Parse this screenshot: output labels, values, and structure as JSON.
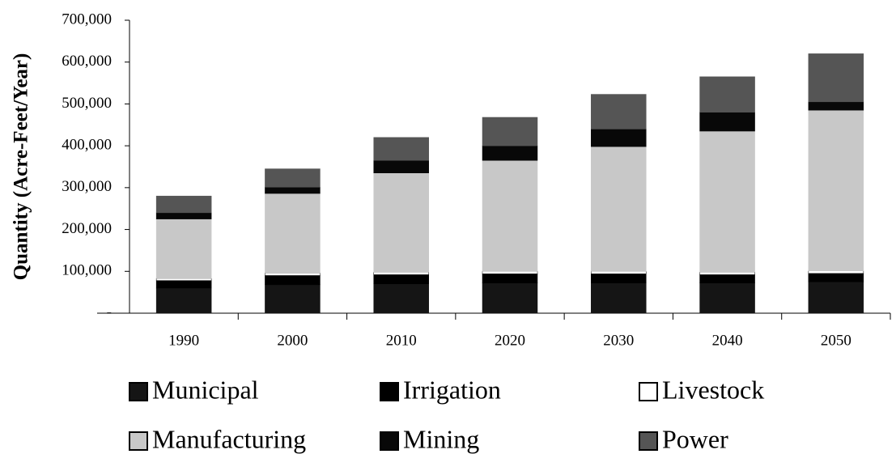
{
  "chart_data": {
    "type": "stacked-bar",
    "y_label": "Quantity (Acre-Feet/Year)",
    "categories": [
      "1990",
      "2000",
      "2010",
      "2020",
      "2030",
      "2040",
      "2050"
    ],
    "series": [
      {
        "name": "Municipal",
        "color": "#151515",
        "values": [
          60000,
          68000,
          70000,
          72000,
          72000,
          72000,
          75000
        ]
      },
      {
        "name": "Irrigation",
        "color": "#000000",
        "values": [
          18000,
          22000,
          22000,
          22000,
          22000,
          20000,
          20000
        ]
      },
      {
        "name": "Livestock",
        "color": "#ffffff",
        "values": [
          5000,
          6000,
          6000,
          6000,
          6000,
          6000,
          6000
        ]
      },
      {
        "name": "Manufacturing",
        "color": "#c8c8c8",
        "values": [
          142000,
          190000,
          237000,
          265000,
          298000,
          337000,
          384000
        ]
      },
      {
        "name": "Mining",
        "color": "#080808",
        "values": [
          15000,
          15000,
          30000,
          35000,
          42000,
          45000,
          20000
        ]
      },
      {
        "name": "Power",
        "color": "#555555",
        "values": [
          40000,
          44000,
          55000,
          68000,
          83000,
          85000,
          115000
        ]
      }
    ],
    "ylim": [
      0,
      700000
    ],
    "yticks": [
      {
        "value": 0,
        "label": "-"
      },
      {
        "value": 100000,
        "label": "100,000"
      },
      {
        "value": 200000,
        "label": "200,000"
      },
      {
        "value": 300000,
        "label": "300,000"
      },
      {
        "value": 400000,
        "label": "400,000"
      },
      {
        "value": 500000,
        "label": "500,000"
      },
      {
        "value": 600000,
        "label": "600,000"
      },
      {
        "value": 700000,
        "label": "700,000"
      }
    ],
    "grid": false
  }
}
